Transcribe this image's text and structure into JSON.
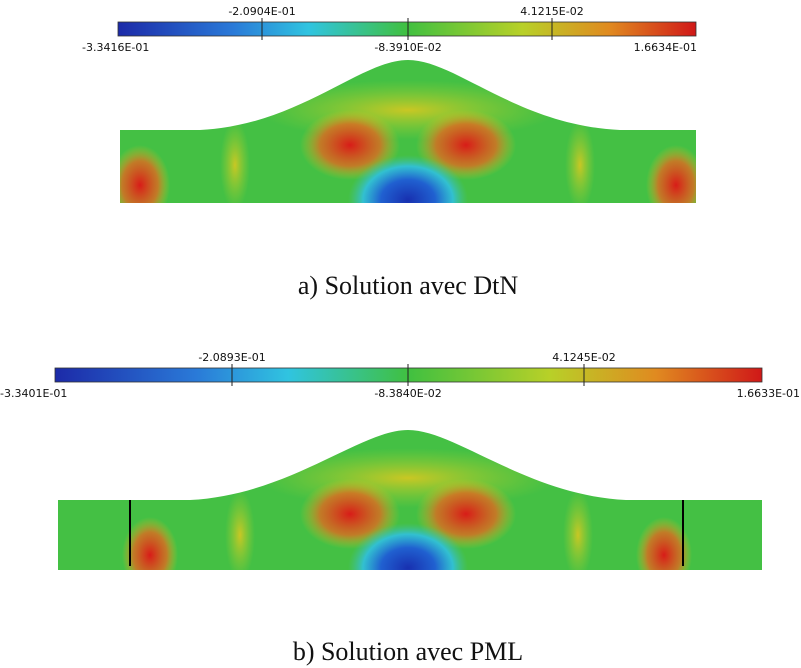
{
  "panels": [
    {
      "colorbar": {
        "top_labels": [
          "-2.0904E-01",
          "4.1215E-02"
        ],
        "bottom_labels": [
          "-3.3416E-01",
          "-8.3910E-02",
          "1.6634E-01"
        ]
      },
      "caption": "a)  Solution avec DtN"
    },
    {
      "colorbar": {
        "top_labels": [
          "-2.0893E-01",
          "4.1245E-02"
        ],
        "bottom_labels": [
          "-3.3401E-01",
          "-8.3840E-02",
          "1.6633E-01"
        ]
      },
      "caption": "b)  Solution avec PML"
    }
  ]
}
